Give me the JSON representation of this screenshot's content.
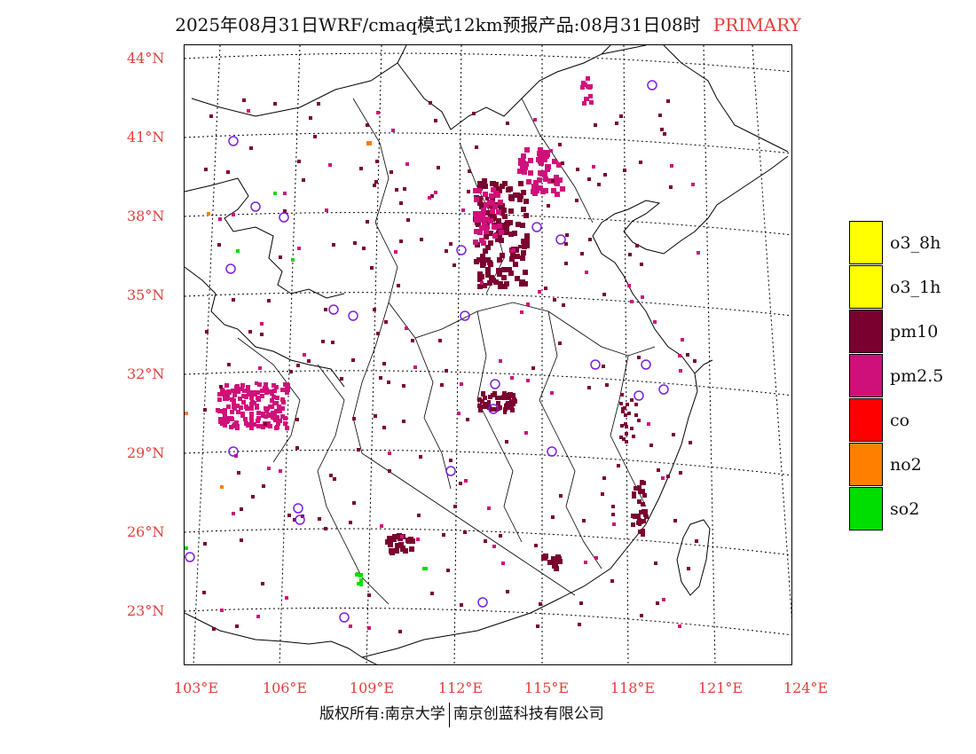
{
  "title": {
    "main": "2025年08月31日WRF/cmaq模式12km预报产品:08月31日08时",
    "tag": "PRIMARY"
  },
  "axes": {
    "lat_labels": [
      "44°N",
      "41°N",
      "38°N",
      "35°N",
      "32°N",
      "29°N",
      "26°N",
      "23°N"
    ],
    "lon_labels": [
      "103°E",
      "106°E",
      "109°E",
      "112°E",
      "115°E",
      "118°E",
      "121°E",
      "124°E"
    ]
  },
  "legend": [
    {
      "label": "o3_8h",
      "color": "#ffff00"
    },
    {
      "label": "o3_1h",
      "color": "#ffff00"
    },
    {
      "label": "pm10",
      "color": "#7a0030"
    },
    {
      "label": "pm2.5",
      "color": "#d0107a"
    },
    {
      "label": "co",
      "color": "#ff0000"
    },
    {
      "label": "no2",
      "color": "#ff8000"
    },
    {
      "label": "so2",
      "color": "#00dd00"
    }
  ],
  "footer": {
    "left": "版权所有:南京大学",
    "right": "南京创蓝科技有限公司"
  },
  "colors": {
    "pm10": "#7a0030",
    "pm25": "#d0107a",
    "no2": "#ff8000",
    "so2": "#00dd00",
    "station": "#7a20e0",
    "label": "#e0403a"
  }
}
